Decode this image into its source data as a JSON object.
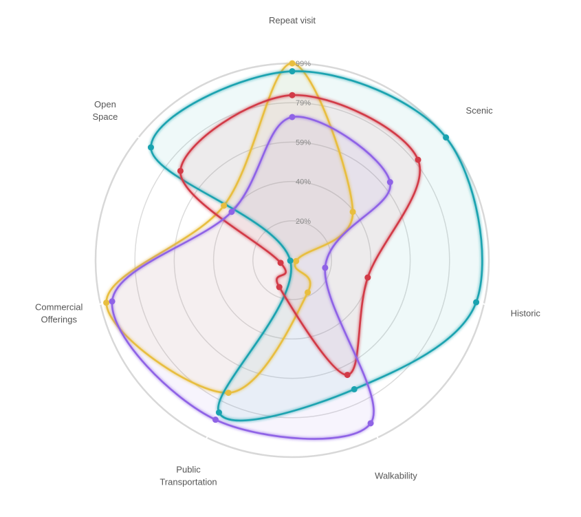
{
  "chart_data": {
    "type": "radar",
    "axes": [
      "Repeat visit",
      "Scenic",
      "Historic",
      "Walkability",
      "Public Transportation",
      "Commercial Offerings",
      "Open Space"
    ],
    "axis_label_lines": [
      [
        "Repeat visit"
      ],
      [
        "Scenic"
      ],
      [
        "Historic"
      ],
      [
        "Walkability"
      ],
      [
        "Public",
        "Transportation"
      ],
      [
        "Commercial",
        "Offerings"
      ],
      [
        "Open",
        "Space"
      ]
    ],
    "ticks": [
      "20%",
      "40%",
      "59%",
      "79%",
      "99%"
    ],
    "range": [
      0,
      99
    ],
    "grid": true,
    "series": [
      {
        "color": "#E8BE3F",
        "values": [
          99,
          39,
          2,
          18,
          74,
          96,
          44
        ]
      },
      {
        "color": "#1AA3B0",
        "values": [
          95,
          99,
          95,
          72,
          85,
          1,
          91
        ]
      },
      {
        "color": "#D23A47",
        "values": [
          83,
          81,
          39,
          64,
          15,
          6,
          72
        ]
      },
      {
        "color": "#8F63E6",
        "values": [
          72,
          63,
          17,
          91,
          89,
          93,
          39
        ]
      }
    ]
  }
}
